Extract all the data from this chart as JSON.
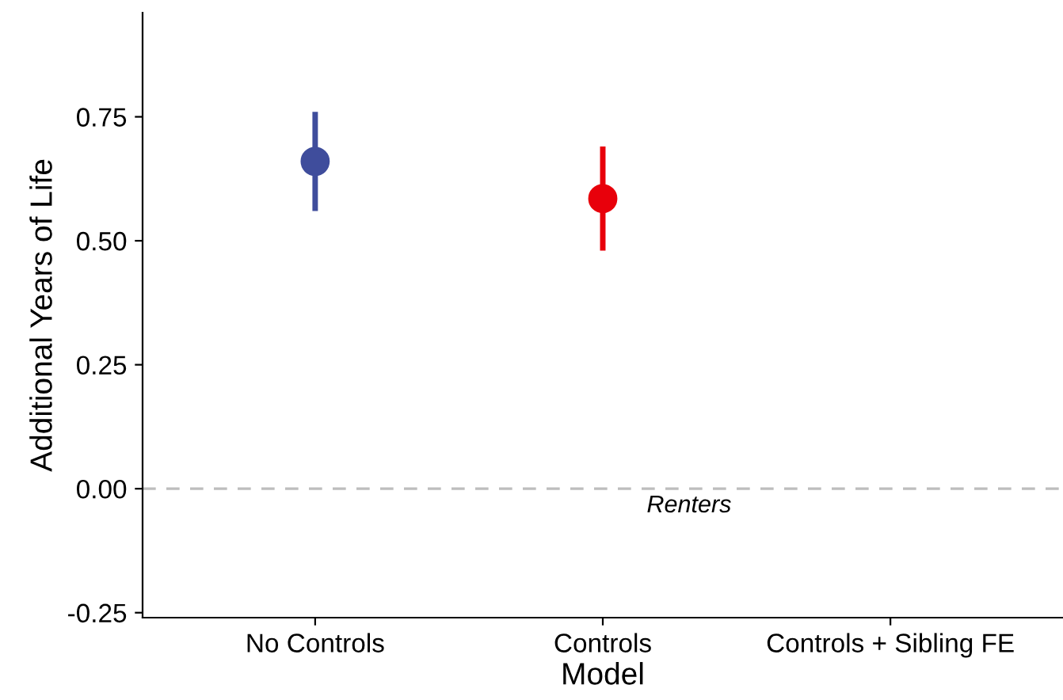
{
  "chart_data": {
    "type": "scatter",
    "xlabel": "Model",
    "ylabel": "Additional Years of Life",
    "categories": [
      "No Controls",
      "Controls",
      "Controls + Sibling FE"
    ],
    "series": [
      {
        "color": "#3f4d9c",
        "values": [
          0.66,
          null,
          null
        ],
        "errors": [
          [
            0.56,
            0.76
          ],
          null,
          null
        ]
      },
      {
        "color": "#e8000b",
        "values": [
          null,
          0.585,
          null
        ],
        "errors": [
          null,
          [
            0.48,
            0.69
          ],
          null
        ]
      }
    ],
    "ylim": [
      -0.26,
      0.96
    ],
    "yticks": [
      {
        "value": -0.25,
        "label": "-0.25"
      },
      {
        "value": 0.0,
        "label": "0.00"
      },
      {
        "value": 0.25,
        "label": "0.25"
      },
      {
        "value": 0.5,
        "label": "0.50"
      },
      {
        "value": 0.75,
        "label": "0.75"
      }
    ],
    "ref_lines": [
      {
        "axis": "y",
        "value": 0.0,
        "label": "Renters",
        "color": "#bdbdbd",
        "line_style": "dashed"
      }
    ],
    "marker": "circle",
    "grid": false,
    "legend": false
  }
}
